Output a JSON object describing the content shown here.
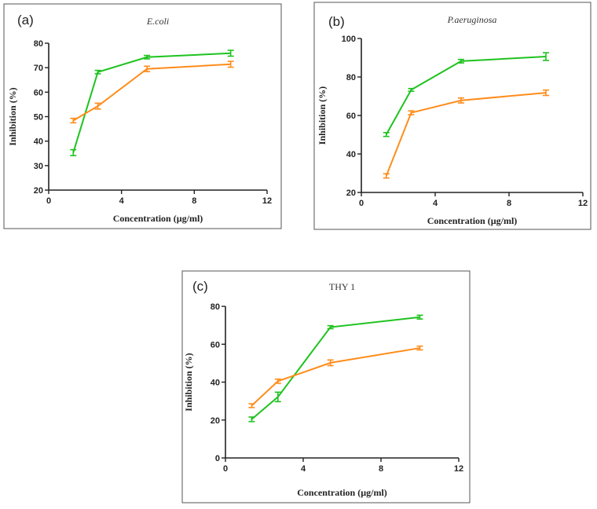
{
  "chart_data": [
    {
      "type": "line",
      "panel_label": "(a)",
      "title": "E.coli",
      "title_italic": true,
      "xlabel": "Concentration (µg/ml)",
      "ylabel": "Inhibition (%)",
      "xlim": [
        0,
        12
      ],
      "ylim": [
        20,
        80
      ],
      "xticks": [
        0,
        4,
        8,
        12
      ],
      "yticks": [
        20,
        30,
        40,
        50,
        60,
        70,
        80
      ],
      "x": [
        1.35,
        2.7,
        5.4,
        10
      ],
      "series": [
        {
          "name": "green",
          "color": "#1ec31e",
          "values": [
            35.3,
            68.2,
            74.3,
            75.9
          ],
          "errors": [
            1.2,
            0.7,
            0.7,
            1.2
          ]
        },
        {
          "name": "orange",
          "color": "#ff8c1a",
          "values": [
            48.4,
            54.3,
            69.5,
            71.4
          ],
          "errors": [
            0.9,
            1.2,
            1.1,
            1.2
          ]
        }
      ]
    },
    {
      "type": "line",
      "panel_label": "(b)",
      "title": "P.aeruginosa",
      "title_italic": true,
      "xlabel": "Concentration (µg/ml)",
      "ylabel": "Inhibition (%)",
      "xlim": [
        0,
        12
      ],
      "ylim": [
        20,
        100
      ],
      "xticks": [
        0,
        4,
        8,
        12
      ],
      "yticks": [
        20,
        40,
        60,
        80,
        100
      ],
      "x": [
        1.35,
        2.7,
        5.4,
        10
      ],
      "series": [
        {
          "name": "green",
          "color": "#1ec31e",
          "values": [
            50.1,
            73.3,
            88.2,
            90.6
          ],
          "errors": [
            1.0,
            0.7,
            0.9,
            2.0
          ]
        },
        {
          "name": "orange",
          "color": "#ff8c1a",
          "values": [
            28.6,
            61.4,
            67.8,
            71.8
          ],
          "errors": [
            1.1,
            1.0,
            1.3,
            1.4
          ]
        }
      ]
    },
    {
      "type": "line",
      "panel_label": "(c)",
      "title": "THY 1",
      "title_italic": false,
      "xlabel": "Concentration (µg/ml)",
      "ylabel": "Inhibition (%)",
      "xlim": [
        0,
        12
      ],
      "ylim": [
        0,
        80
      ],
      "xticks": [
        0,
        4,
        8,
        12
      ],
      "yticks": [
        0,
        20,
        40,
        60,
        80
      ],
      "x": [
        1.35,
        2.7,
        5.4,
        10
      ],
      "series": [
        {
          "name": "green",
          "color": "#1ec31e",
          "values": [
            20.4,
            32.2,
            69.0,
            74.3
          ],
          "errors": [
            1.2,
            2.5,
            0.8,
            1.0
          ]
        },
        {
          "name": "orange",
          "color": "#ff8c1a",
          "values": [
            27.6,
            40.5,
            50.2,
            58.0
          ],
          "errors": [
            1.0,
            1.1,
            1.5,
            1.0
          ]
        }
      ]
    }
  ]
}
